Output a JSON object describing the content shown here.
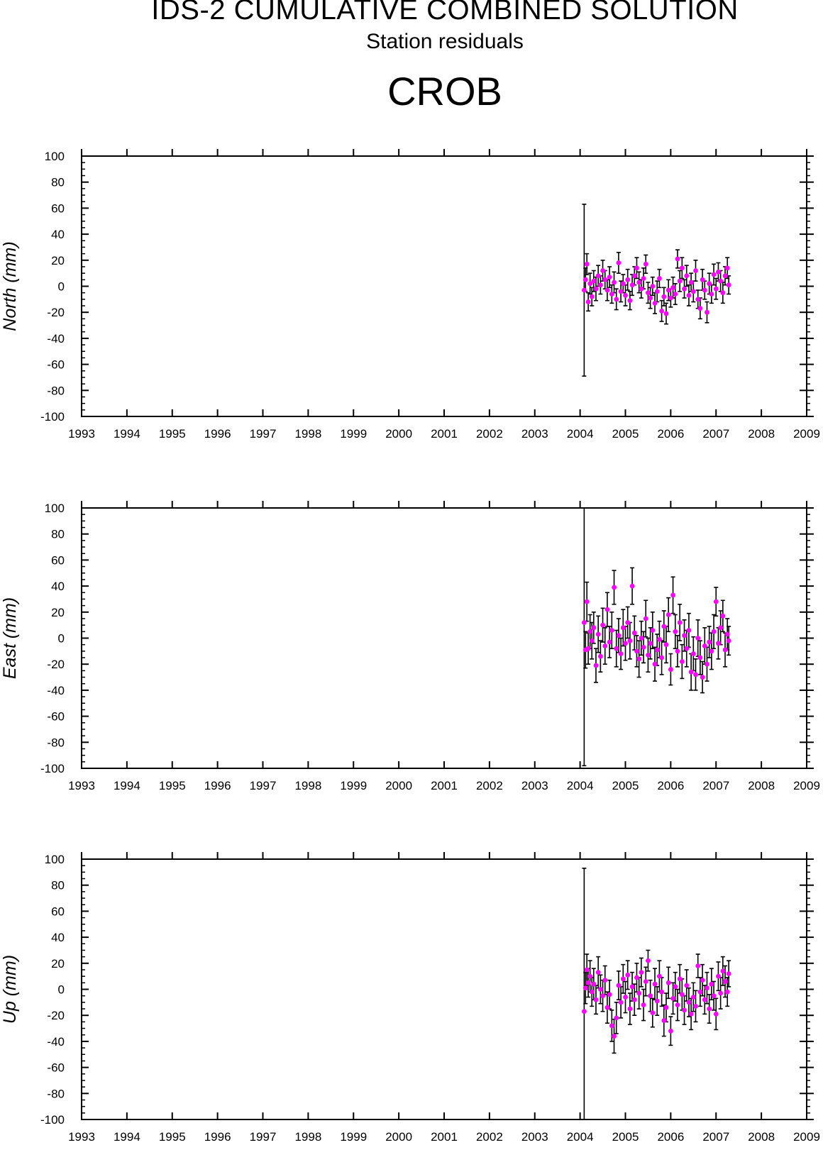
{
  "title": "IDS-2 CUMULATIVE COMBINED SOLUTION",
  "subtitle": "Station residuals",
  "station": "CROB",
  "colors": {
    "point": "#ff00ff",
    "errorbar": "#000000",
    "axis": "#000000"
  },
  "chart_data": [
    {
      "type": "scatter",
      "ylabel": "North (mm)",
      "xlim": [
        1993,
        2009
      ],
      "ylim": [
        -100,
        100
      ],
      "xticks": [
        "1993",
        "1994",
        "1995",
        "1996",
        "1997",
        "1998",
        "1999",
        "2000",
        "2001",
        "2002",
        "2003",
        "2004",
        "2005",
        "2006",
        "2007",
        "2008",
        "2009"
      ],
      "yticks": [
        "100",
        "80",
        "60",
        "40",
        "20",
        "0",
        "-20",
        "-40",
        "-60",
        "-80",
        "-100"
      ],
      "points": [
        {
          "x": 2004.09,
          "y": -3,
          "err": 66
        },
        {
          "x": 2004.12,
          "y": 5,
          "err": 9
        },
        {
          "x": 2004.15,
          "y": 17,
          "err": 8
        },
        {
          "x": 2004.18,
          "y": -12,
          "err": 7
        },
        {
          "x": 2004.22,
          "y": 2,
          "err": 8
        },
        {
          "x": 2004.26,
          "y": -8,
          "err": 7
        },
        {
          "x": 2004.3,
          "y": 4,
          "err": 8
        },
        {
          "x": 2004.35,
          "y": -2,
          "err": 9
        },
        {
          "x": 2004.4,
          "y": 8,
          "err": 8
        },
        {
          "x": 2004.45,
          "y": 1,
          "err": 7
        },
        {
          "x": 2004.5,
          "y": 12,
          "err": 8
        },
        {
          "x": 2004.55,
          "y": 5,
          "err": 7
        },
        {
          "x": 2004.6,
          "y": -3,
          "err": 8
        },
        {
          "x": 2004.65,
          "y": 7,
          "err": 8
        },
        {
          "x": 2004.7,
          "y": -6,
          "err": 7
        },
        {
          "x": 2004.75,
          "y": 3,
          "err": 8
        },
        {
          "x": 2004.8,
          "y": -10,
          "err": 8
        },
        {
          "x": 2004.85,
          "y": 18,
          "err": 8
        },
        {
          "x": 2004.9,
          "y": -4,
          "err": 8
        },
        {
          "x": 2004.95,
          "y": 2,
          "err": 7
        },
        {
          "x": 2005.0,
          "y": -7,
          "err": 8
        },
        {
          "x": 2005.05,
          "y": 5,
          "err": 8
        },
        {
          "x": 2005.1,
          "y": -11,
          "err": 7
        },
        {
          "x": 2005.15,
          "y": 1,
          "err": 8
        },
        {
          "x": 2005.2,
          "y": 8,
          "err": 7
        },
        {
          "x": 2005.25,
          "y": 14,
          "err": 8
        },
        {
          "x": 2005.3,
          "y": 3,
          "err": 8
        },
        {
          "x": 2005.35,
          "y": -2,
          "err": 7
        },
        {
          "x": 2005.4,
          "y": 6,
          "err": 8
        },
        {
          "x": 2005.45,
          "y": 17,
          "err": 7
        },
        {
          "x": 2005.5,
          "y": -5,
          "err": 8
        },
        {
          "x": 2005.55,
          "y": -9,
          "err": 8
        },
        {
          "x": 2005.6,
          "y": 0,
          "err": 7
        },
        {
          "x": 2005.65,
          "y": -13,
          "err": 8
        },
        {
          "x": 2005.7,
          "y": -4,
          "err": 8
        },
        {
          "x": 2005.75,
          "y": 6,
          "err": 7
        },
        {
          "x": 2005.8,
          "y": -19,
          "err": 8
        },
        {
          "x": 2005.85,
          "y": -8,
          "err": 7
        },
        {
          "x": 2005.9,
          "y": -21,
          "err": 8
        },
        {
          "x": 2005.95,
          "y": -3,
          "err": 8
        },
        {
          "x": 2006.0,
          "y": -9,
          "err": 7
        },
        {
          "x": 2006.05,
          "y": -1,
          "err": 8
        },
        {
          "x": 2006.1,
          "y": -6,
          "err": 8
        },
        {
          "x": 2006.15,
          "y": 21,
          "err": 7
        },
        {
          "x": 2006.2,
          "y": 4,
          "err": 8
        },
        {
          "x": 2006.25,
          "y": 14,
          "err": 8
        },
        {
          "x": 2006.3,
          "y": -2,
          "err": 7
        },
        {
          "x": 2006.35,
          "y": 8,
          "err": 8
        },
        {
          "x": 2006.4,
          "y": -7,
          "err": 8
        },
        {
          "x": 2006.45,
          "y": 3,
          "err": 7
        },
        {
          "x": 2006.5,
          "y": -4,
          "err": 8
        },
        {
          "x": 2006.55,
          "y": 12,
          "err": 8
        },
        {
          "x": 2006.6,
          "y": -10,
          "err": 7
        },
        {
          "x": 2006.65,
          "y": -17,
          "err": 8
        },
        {
          "x": 2006.7,
          "y": 5,
          "err": 8
        },
        {
          "x": 2006.75,
          "y": -3,
          "err": 7
        },
        {
          "x": 2006.8,
          "y": -20,
          "err": 8
        },
        {
          "x": 2006.85,
          "y": 2,
          "err": 8
        },
        {
          "x": 2006.9,
          "y": -6,
          "err": 7
        },
        {
          "x": 2006.95,
          "y": 9,
          "err": 8
        },
        {
          "x": 2007.0,
          "y": -2,
          "err": 8
        },
        {
          "x": 2007.05,
          "y": 11,
          "err": 7
        },
        {
          "x": 2007.1,
          "y": 4,
          "err": 8
        },
        {
          "x": 2007.15,
          "y": -5,
          "err": 8
        },
        {
          "x": 2007.2,
          "y": 8,
          "err": 7
        },
        {
          "x": 2007.25,
          "y": 14,
          "err": 8
        },
        {
          "x": 2007.28,
          "y": 1,
          "err": 7
        }
      ]
    },
    {
      "type": "scatter",
      "ylabel": "East (mm)",
      "xlim": [
        1993,
        2009
      ],
      "ylim": [
        -100,
        100
      ],
      "xticks": [
        "1993",
        "1994",
        "1995",
        "1996",
        "1997",
        "1998",
        "1999",
        "2000",
        "2001",
        "2002",
        "2003",
        "2004",
        "2005",
        "2006",
        "2007",
        "2008",
        "2009"
      ],
      "yticks": [
        "100",
        "80",
        "60",
        "40",
        "20",
        "0",
        "-20",
        "-40",
        "-60",
        "-80",
        "-100"
      ],
      "points": [
        {
          "x": 2004.09,
          "y": 12,
          "err": 110
        },
        {
          "x": 2004.12,
          "y": -9,
          "err": 14
        },
        {
          "x": 2004.15,
          "y": 28,
          "err": 15
        },
        {
          "x": 2004.18,
          "y": -8,
          "err": 12
        },
        {
          "x": 2004.22,
          "y": 5,
          "err": 13
        },
        {
          "x": 2004.26,
          "y": -2,
          "err": 14
        },
        {
          "x": 2004.3,
          "y": 8,
          "err": 12
        },
        {
          "x": 2004.35,
          "y": -21,
          "err": 13
        },
        {
          "x": 2004.4,
          "y": 3,
          "err": 14
        },
        {
          "x": 2004.45,
          "y": -14,
          "err": 12
        },
        {
          "x": 2004.5,
          "y": 10,
          "err": 13
        },
        {
          "x": 2004.55,
          "y": -6,
          "err": 14
        },
        {
          "x": 2004.6,
          "y": 22,
          "err": 13
        },
        {
          "x": 2004.65,
          "y": -3,
          "err": 12
        },
        {
          "x": 2004.7,
          "y": 6,
          "err": 14
        },
        {
          "x": 2004.75,
          "y": 39,
          "err": 13
        },
        {
          "x": 2004.8,
          "y": -8,
          "err": 14
        },
        {
          "x": 2004.85,
          "y": 2,
          "err": 13
        },
        {
          "x": 2004.9,
          "y": -12,
          "err": 12
        },
        {
          "x": 2004.95,
          "y": 8,
          "err": 14
        },
        {
          "x": 2005.0,
          "y": -4,
          "err": 13
        },
        {
          "x": 2005.05,
          "y": 12,
          "err": 12
        },
        {
          "x": 2005.1,
          "y": -2,
          "err": 14
        },
        {
          "x": 2005.15,
          "y": 40,
          "err": 14
        },
        {
          "x": 2005.2,
          "y": 4,
          "err": 13
        },
        {
          "x": 2005.25,
          "y": -10,
          "err": 12
        },
        {
          "x": 2005.3,
          "y": -16,
          "err": 14
        },
        {
          "x": 2005.35,
          "y": 0,
          "err": 13
        },
        {
          "x": 2005.4,
          "y": -7,
          "err": 12
        },
        {
          "x": 2005.45,
          "y": 15,
          "err": 14
        },
        {
          "x": 2005.5,
          "y": -13,
          "err": 13
        },
        {
          "x": 2005.55,
          "y": -4,
          "err": 12
        },
        {
          "x": 2005.6,
          "y": 6,
          "err": 14
        },
        {
          "x": 2005.65,
          "y": -20,
          "err": 13
        },
        {
          "x": 2005.7,
          "y": -9,
          "err": 12
        },
        {
          "x": 2005.75,
          "y": -1,
          "err": 14
        },
        {
          "x": 2005.8,
          "y": -15,
          "err": 13
        },
        {
          "x": 2005.85,
          "y": 9,
          "err": 12
        },
        {
          "x": 2005.9,
          "y": -5,
          "err": 14
        },
        {
          "x": 2005.95,
          "y": 18,
          "err": 13
        },
        {
          "x": 2006.0,
          "y": -24,
          "err": 12
        },
        {
          "x": 2006.05,
          "y": 33,
          "err": 14
        },
        {
          "x": 2006.1,
          "y": 5,
          "err": 13
        },
        {
          "x": 2006.15,
          "y": -10,
          "err": 12
        },
        {
          "x": 2006.2,
          "y": 12,
          "err": 14
        },
        {
          "x": 2006.25,
          "y": -18,
          "err": 13
        },
        {
          "x": 2006.3,
          "y": 2,
          "err": 12
        },
        {
          "x": 2006.35,
          "y": -8,
          "err": 14
        },
        {
          "x": 2006.4,
          "y": 6,
          "err": 13
        },
        {
          "x": 2006.45,
          "y": -26,
          "err": 14
        },
        {
          "x": 2006.5,
          "y": -12,
          "err": 13
        },
        {
          "x": 2006.55,
          "y": -28,
          "err": 12
        },
        {
          "x": 2006.6,
          "y": 0,
          "err": 14
        },
        {
          "x": 2006.65,
          "y": -15,
          "err": 13
        },
        {
          "x": 2006.7,
          "y": -30,
          "err": 12
        },
        {
          "x": 2006.75,
          "y": -6,
          "err": 14
        },
        {
          "x": 2006.8,
          "y": -20,
          "err": 13
        },
        {
          "x": 2006.85,
          "y": -3,
          "err": 12
        },
        {
          "x": 2006.9,
          "y": -10,
          "err": 14
        },
        {
          "x": 2006.95,
          "y": 5,
          "err": 13
        },
        {
          "x": 2007.0,
          "y": 28,
          "err": 11
        },
        {
          "x": 2007.05,
          "y": -4,
          "err": 12
        },
        {
          "x": 2007.1,
          "y": 8,
          "err": 13
        },
        {
          "x": 2007.15,
          "y": 17,
          "err": 12
        },
        {
          "x": 2007.2,
          "y": -9,
          "err": 13
        },
        {
          "x": 2007.25,
          "y": 3,
          "err": 12
        },
        {
          "x": 2007.28,
          "y": -2,
          "err": 11
        }
      ]
    },
    {
      "type": "scatter",
      "ylabel": "Up (mm)",
      "xlim": [
        1993,
        2009
      ],
      "ylim": [
        -100,
        100
      ],
      "xticks": [
        "1993",
        "1994",
        "1995",
        "1996",
        "1997",
        "1998",
        "1999",
        "2000",
        "2001",
        "2002",
        "2003",
        "2004",
        "2005",
        "2006",
        "2007",
        "2008",
        "2009"
      ],
      "yticks": [
        "100",
        "80",
        "60",
        "40",
        "20",
        "0",
        "-20",
        "-40",
        "-60",
        "-80",
        "-100"
      ],
      "points": [
        {
          "x": 2004.09,
          "y": -17,
          "err": 110
        },
        {
          "x": 2004.12,
          "y": 1,
          "err": 12
        },
        {
          "x": 2004.15,
          "y": 15,
          "err": 12
        },
        {
          "x": 2004.18,
          "y": 5,
          "err": 11
        },
        {
          "x": 2004.22,
          "y": 10,
          "err": 12
        },
        {
          "x": 2004.26,
          "y": -2,
          "err": 11
        },
        {
          "x": 2004.3,
          "y": 4,
          "err": 12
        },
        {
          "x": 2004.35,
          "y": -8,
          "err": 11
        },
        {
          "x": 2004.4,
          "y": 13,
          "err": 12
        },
        {
          "x": 2004.45,
          "y": 0,
          "err": 11
        },
        {
          "x": 2004.5,
          "y": -5,
          "err": 12
        },
        {
          "x": 2004.55,
          "y": 7,
          "err": 11
        },
        {
          "x": 2004.6,
          "y": -14,
          "err": 12
        },
        {
          "x": 2004.65,
          "y": -4,
          "err": 11
        },
        {
          "x": 2004.7,
          "y": -28,
          "err": 12
        },
        {
          "x": 2004.75,
          "y": -36,
          "err": 13
        },
        {
          "x": 2004.8,
          "y": -22,
          "err": 12
        },
        {
          "x": 2004.85,
          "y": 3,
          "err": 11
        },
        {
          "x": 2004.9,
          "y": -10,
          "err": 12
        },
        {
          "x": 2004.95,
          "y": 8,
          "err": 11
        },
        {
          "x": 2005.0,
          "y": -6,
          "err": 12
        },
        {
          "x": 2005.05,
          "y": 11,
          "err": 11
        },
        {
          "x": 2005.1,
          "y": -15,
          "err": 12
        },
        {
          "x": 2005.15,
          "y": 2,
          "err": 11
        },
        {
          "x": 2005.2,
          "y": -8,
          "err": 12
        },
        {
          "x": 2005.25,
          "y": 9,
          "err": 11
        },
        {
          "x": 2005.3,
          "y": -3,
          "err": 12
        },
        {
          "x": 2005.35,
          "y": 13,
          "err": 11
        },
        {
          "x": 2005.4,
          "y": -12,
          "err": 12
        },
        {
          "x": 2005.45,
          "y": 6,
          "err": 11
        },
        {
          "x": 2005.5,
          "y": 22,
          "err": 8
        },
        {
          "x": 2005.55,
          "y": -5,
          "err": 12
        },
        {
          "x": 2005.6,
          "y": -18,
          "err": 11
        },
        {
          "x": 2005.65,
          "y": 4,
          "err": 12
        },
        {
          "x": 2005.7,
          "y": -9,
          "err": 11
        },
        {
          "x": 2005.75,
          "y": 10,
          "err": 12
        },
        {
          "x": 2005.8,
          "y": -2,
          "err": 11
        },
        {
          "x": 2005.85,
          "y": -24,
          "err": 12
        },
        {
          "x": 2005.9,
          "y": -14,
          "err": 11
        },
        {
          "x": 2005.95,
          "y": 5,
          "err": 12
        },
        {
          "x": 2006.0,
          "y": -32,
          "err": 11
        },
        {
          "x": 2006.05,
          "y": -7,
          "err": 12
        },
        {
          "x": 2006.1,
          "y": 2,
          "err": 11
        },
        {
          "x": 2006.15,
          "y": -12,
          "err": 12
        },
        {
          "x": 2006.2,
          "y": 8,
          "err": 11
        },
        {
          "x": 2006.25,
          "y": -4,
          "err": 12
        },
        {
          "x": 2006.3,
          "y": -16,
          "err": 11
        },
        {
          "x": 2006.35,
          "y": 3,
          "err": 12
        },
        {
          "x": 2006.4,
          "y": -10,
          "err": 11
        },
        {
          "x": 2006.45,
          "y": -19,
          "err": 12
        },
        {
          "x": 2006.5,
          "y": -6,
          "err": 11
        },
        {
          "x": 2006.55,
          "y": -13,
          "err": 12
        },
        {
          "x": 2006.6,
          "y": 18,
          "err": 9
        },
        {
          "x": 2006.65,
          "y": -2,
          "err": 11
        },
        {
          "x": 2006.7,
          "y": 7,
          "err": 12
        },
        {
          "x": 2006.75,
          "y": -8,
          "err": 11
        },
        {
          "x": 2006.8,
          "y": 1,
          "err": 12
        },
        {
          "x": 2006.85,
          "y": -15,
          "err": 11
        },
        {
          "x": 2006.9,
          "y": 4,
          "err": 12
        },
        {
          "x": 2006.95,
          "y": -5,
          "err": 11
        },
        {
          "x": 2007.0,
          "y": -19,
          "err": 12
        },
        {
          "x": 2007.05,
          "y": 10,
          "err": 11
        },
        {
          "x": 2007.1,
          "y": -3,
          "err": 12
        },
        {
          "x": 2007.15,
          "y": 14,
          "err": 11
        },
        {
          "x": 2007.2,
          "y": 6,
          "err": 12
        },
        {
          "x": 2007.25,
          "y": -2,
          "err": 11
        },
        {
          "x": 2007.28,
          "y": 12,
          "err": 10
        }
      ]
    }
  ]
}
